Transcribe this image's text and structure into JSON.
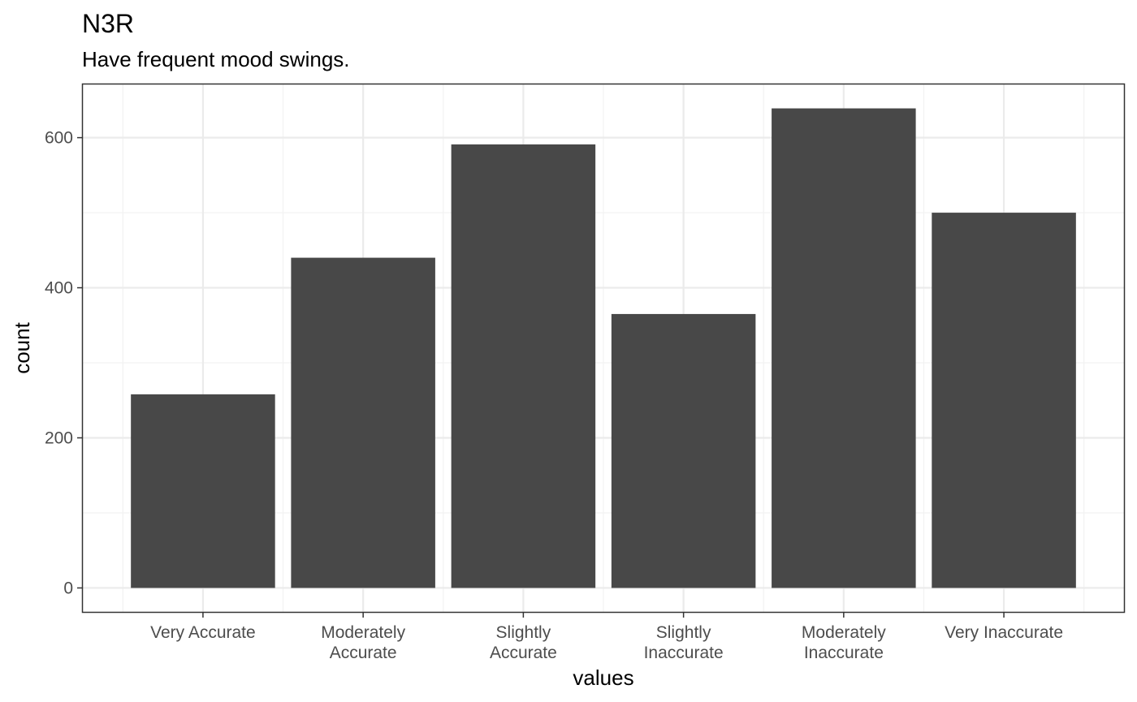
{
  "chart_data": {
    "type": "bar",
    "title": "N3R",
    "subtitle": "Have frequent mood swings.",
    "xlabel": "values",
    "ylabel": "count",
    "categories": [
      [
        "Very Accurate"
      ],
      [
        "Moderately",
        "Accurate"
      ],
      [
        "Slightly",
        "Accurate"
      ],
      [
        "Slightly",
        "Inaccurate"
      ],
      [
        "Moderately",
        "Inaccurate"
      ],
      [
        "Very Inaccurate"
      ]
    ],
    "values": [
      258,
      440,
      591,
      365,
      639,
      500
    ],
    "ylim": [
      -31.95,
      670.95
    ],
    "y_ticks": [
      0,
      200,
      400,
      600
    ],
    "y_minor_ticks": [
      100,
      300,
      500
    ],
    "grid": true,
    "colors": {
      "bar": "#484848",
      "panel_border": "#333333",
      "grid_major": "#ebebeb",
      "grid_minor": "#f2f2f2",
      "tick": "#333333"
    }
  }
}
